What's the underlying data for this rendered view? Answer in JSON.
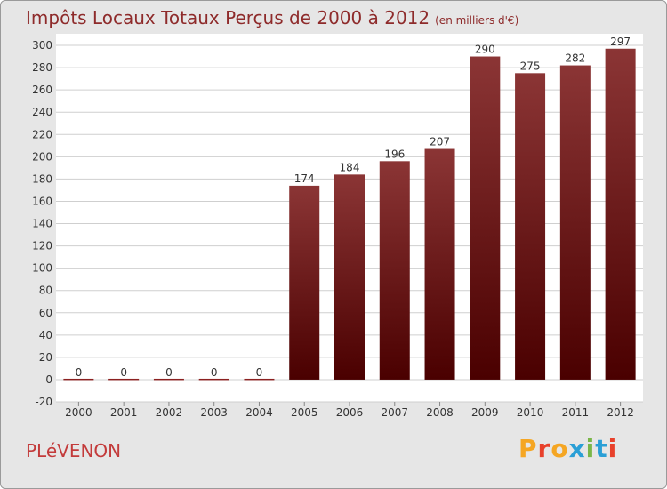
{
  "header": {
    "title": "Impôts Locaux Totaux Perçus de 2000 à 2012",
    "unit": "(en milliers d'€)"
  },
  "footer": {
    "commune": "PLéVENON",
    "brand": "Proxiti",
    "brand_colors": [
      "#f5a623",
      "#e8412b",
      "#f5a623",
      "#2a9fd6",
      "#7ab648",
      "#2a9fd6",
      "#e8412b"
    ]
  },
  "chart_data": {
    "type": "bar",
    "categories": [
      "2000",
      "2001",
      "2002",
      "2003",
      "2004",
      "2005",
      "2006",
      "2007",
      "2008",
      "2009",
      "2010",
      "2011",
      "2012"
    ],
    "values": [
      0,
      0,
      0,
      0,
      0,
      174,
      184,
      196,
      207,
      290,
      275,
      282,
      297
    ],
    "data_labels": [
      "0",
      "0",
      "0",
      "0",
      "0",
      "174",
      "184",
      "196",
      "207",
      "290",
      "275",
      "282",
      "297"
    ],
    "ylim": [
      -20,
      300
    ],
    "ytick_step": 20,
    "grid": true,
    "bar_color_top": "#8b3535",
    "bar_color_bottom": "#4a0000"
  }
}
